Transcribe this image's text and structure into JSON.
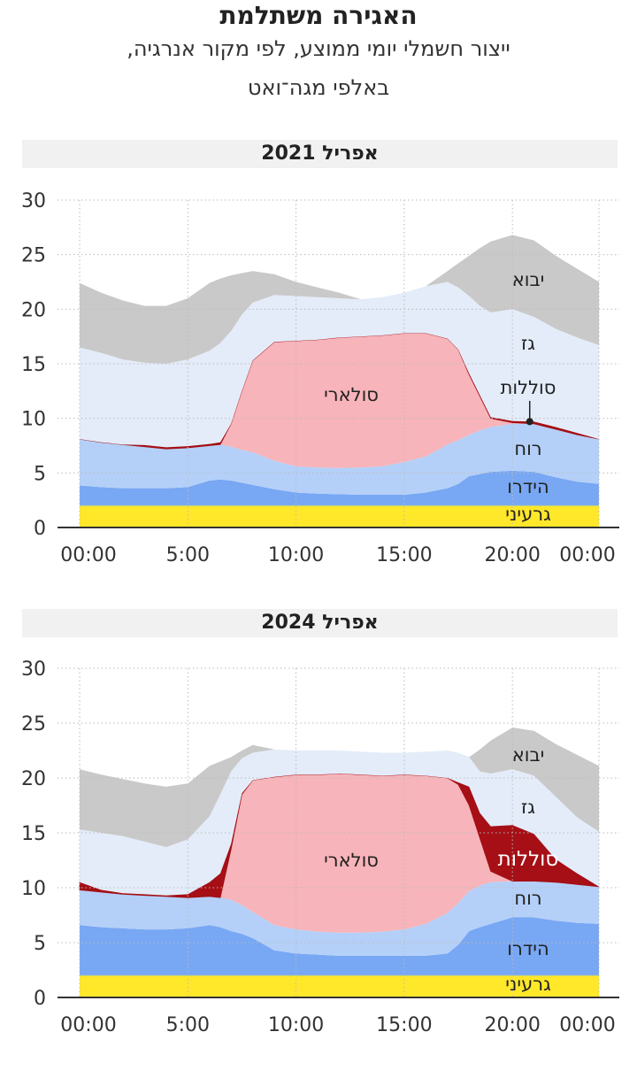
{
  "header": {
    "title": "האגירה משתלמת",
    "subtitle_line1": "ייצור חשמלי יומי ממוצע, לפי מקור אנרגיה,",
    "subtitle_line2": "באלפי מגה־ואט"
  },
  "colors": {
    "import": "#c9c9c9",
    "gas": "#e4ecf9",
    "batteries": "#a50f15",
    "solar": "#f7b4ba",
    "wind": "#b4d0f8",
    "hydro": "#78a7f3",
    "nuclear": "#ffe72a"
  },
  "chart_data": [
    {
      "type": "area",
      "stacked": true,
      "title": "אפריל 2021",
      "ylabel": "באלפי מגה־ואט",
      "ylim": [
        0,
        30
      ],
      "yticks": [
        "0",
        "5",
        "10",
        "15",
        "20",
        "25",
        "30"
      ],
      "xticks": [
        "00:00",
        "5:00",
        "10:00",
        "15:00",
        "20:00",
        "00:00"
      ],
      "grid": true,
      "x_hours": [
        0,
        1,
        2,
        3,
        4,
        5,
        6,
        6.5,
        7,
        7.5,
        8,
        9,
        10,
        11,
        12,
        13,
        14,
        15,
        16,
        17,
        17.5,
        18,
        18.5,
        19,
        20,
        21,
        22,
        23,
        24
      ],
      "value_mode": "cumulative stack top",
      "series": [
        {
          "key": "nuclear",
          "name": "גרעיני",
          "stack_top": [
            2,
            2,
            2,
            2,
            2,
            2,
            2,
            2,
            2,
            2,
            2,
            2,
            2,
            2,
            2,
            2,
            2,
            2,
            2,
            2,
            2,
            2,
            2,
            2,
            2,
            2,
            2,
            2,
            2
          ]
        },
        {
          "key": "hydro",
          "name": "הידרו",
          "stack_top": [
            3.85,
            3.7,
            3.6,
            3.6,
            3.6,
            3.7,
            4.3,
            4.4,
            4.3,
            4.1,
            3.9,
            3.5,
            3.2,
            3.1,
            3.05,
            3.0,
            3.0,
            3.0,
            3.2,
            3.6,
            4.0,
            4.7,
            4.9,
            5.1,
            5.2,
            5.1,
            4.6,
            4.2,
            4.0
          ]
        },
        {
          "key": "wind",
          "name": "רוח",
          "stack_top": [
            8.1,
            7.8,
            7.6,
            7.4,
            7.2,
            7.3,
            7.5,
            7.6,
            7.4,
            7.1,
            6.9,
            6.1,
            5.6,
            5.5,
            5.45,
            5.5,
            5.6,
            6.0,
            6.5,
            7.6,
            8.0,
            8.5,
            8.9,
            9.2,
            9.5,
            9.5,
            9.0,
            8.5,
            8.1
          ]
        },
        {
          "key": "solar",
          "name": "סולארי",
          "stack_top": [
            8.1,
            7.8,
            7.6,
            7.4,
            7.2,
            7.3,
            7.5,
            7.6,
            9.5,
            12.5,
            15.3,
            17.0,
            17.1,
            17.2,
            17.4,
            17.5,
            17.6,
            17.8,
            17.8,
            17.3,
            16.3,
            14.0,
            12.0,
            10.0,
            9.6,
            9.5,
            9.0,
            8.5,
            8.1
          ]
        },
        {
          "key": "batteries",
          "name": "סוללות",
          "stack_top": [
            8.1,
            7.8,
            7.6,
            7.55,
            7.35,
            7.45,
            7.65,
            7.8,
            9.5,
            12.5,
            15.3,
            17.0,
            17.1,
            17.2,
            17.4,
            17.5,
            17.6,
            17.8,
            17.8,
            17.3,
            16.3,
            14.1,
            12.1,
            10.1,
            9.75,
            9.7,
            9.2,
            8.65,
            8.1
          ]
        },
        {
          "key": "gas",
          "name": "גז",
          "stack_top": [
            16.5,
            16.0,
            15.4,
            15.1,
            15.0,
            15.4,
            16.2,
            16.9,
            18.0,
            19.5,
            20.6,
            21.3,
            21.2,
            21.1,
            21.0,
            20.9,
            21.1,
            21.5,
            22.1,
            22.5,
            22.0,
            21.2,
            20.3,
            19.7,
            20.0,
            19.3,
            18.2,
            17.4,
            16.7
          ]
        },
        {
          "key": "import",
          "name": "יבוא",
          "stack_top": [
            22.4,
            21.5,
            20.8,
            20.3,
            20.3,
            21.0,
            22.4,
            22.8,
            23.1,
            23.3,
            23.5,
            23.2,
            22.5,
            22.0,
            21.5,
            20.9,
            21.1,
            21.5,
            22.1,
            23.5,
            24.2,
            24.9,
            25.6,
            26.2,
            26.8,
            26.3,
            24.9,
            23.7,
            22.5
          ]
        }
      ]
    },
    {
      "type": "area",
      "stacked": true,
      "title": "אפריל 2024",
      "ylabel": "באלפי מגה־ואט",
      "ylim": [
        0,
        30
      ],
      "yticks": [
        "0",
        "5",
        "10",
        "15",
        "20",
        "25",
        "30"
      ],
      "xticks": [
        "00:00",
        "5:00",
        "10:00",
        "15:00",
        "20:00",
        "00:00"
      ],
      "grid": true,
      "x_hours": [
        0,
        1,
        2,
        3,
        4,
        5,
        6,
        6.5,
        7,
        7.5,
        8,
        9,
        10,
        11,
        12,
        13,
        14,
        15,
        16,
        17,
        17.5,
        18,
        18.5,
        19,
        20,
        21,
        22,
        23,
        24
      ],
      "value_mode": "cumulative stack top",
      "series": [
        {
          "key": "nuclear",
          "name": "גרעיני",
          "stack_top": [
            2,
            2,
            2,
            2,
            2,
            2,
            2,
            2,
            2,
            2,
            2,
            2,
            2,
            2,
            2,
            2,
            2,
            2,
            2,
            2,
            2,
            2,
            2,
            2,
            2,
            2,
            2,
            2,
            2
          ]
        },
        {
          "key": "hydro",
          "name": "הידרו",
          "stack_top": [
            6.6,
            6.4,
            6.3,
            6.2,
            6.2,
            6.3,
            6.6,
            6.4,
            6.05,
            5.8,
            5.4,
            4.3,
            4.0,
            3.9,
            3.8,
            3.8,
            3.8,
            3.8,
            3.8,
            4.0,
            4.8,
            6.05,
            6.4,
            6.7,
            7.3,
            7.3,
            7.0,
            6.8,
            6.7
          ]
        },
        {
          "key": "wind",
          "name": "רוח",
          "stack_top": [
            9.8,
            9.6,
            9.4,
            9.3,
            9.2,
            9.1,
            9.2,
            9.1,
            8.9,
            8.4,
            7.8,
            6.6,
            6.2,
            6.0,
            5.9,
            5.9,
            6.0,
            6.2,
            6.7,
            7.7,
            8.6,
            9.7,
            10.2,
            10.5,
            10.6,
            10.6,
            10.5,
            10.3,
            10.1
          ]
        },
        {
          "key": "solar",
          "name": "סולארי",
          "stack_top": [
            9.8,
            9.6,
            9.4,
            9.3,
            9.2,
            9.1,
            9.2,
            9.1,
            13.5,
            18.5,
            19.8,
            20.1,
            20.3,
            20.3,
            20.4,
            20.3,
            20.2,
            20.3,
            20.2,
            20.0,
            19.4,
            17.5,
            14.5,
            11.5,
            10.6,
            10.6,
            10.5,
            10.3,
            10.1
          ]
        },
        {
          "key": "batteries",
          "name": "סוללות",
          "stack_top": [
            10.5,
            9.8,
            9.5,
            9.4,
            9.3,
            9.4,
            10.5,
            11.3,
            14.0,
            18.6,
            19.8,
            20.1,
            20.3,
            20.3,
            20.4,
            20.3,
            20.2,
            20.3,
            20.2,
            20.0,
            19.6,
            19.2,
            16.8,
            15.6,
            15.7,
            14.9,
            12.6,
            11.3,
            10.1
          ]
        },
        {
          "key": "gas",
          "name": "גז",
          "stack_top": [
            15.3,
            15.0,
            14.7,
            14.2,
            13.7,
            14.4,
            16.5,
            18.5,
            20.6,
            21.8,
            22.3,
            22.6,
            22.5,
            22.5,
            22.5,
            22.4,
            22.3,
            22.3,
            22.4,
            22.5,
            22.3,
            21.9,
            20.6,
            20.4,
            20.8,
            20.2,
            18.3,
            16.4,
            15.1
          ]
        },
        {
          "key": "import",
          "name": "יבוא",
          "stack_top": [
            20.8,
            20.3,
            19.9,
            19.5,
            19.2,
            19.5,
            21.1,
            21.5,
            21.9,
            22.5,
            23.0,
            22.6,
            22.5,
            22.5,
            22.5,
            22.4,
            22.3,
            22.3,
            22.4,
            22.5,
            22.3,
            21.9,
            22.6,
            23.4,
            24.6,
            24.3,
            23.1,
            22.1,
            21.1
          ]
        }
      ]
    }
  ]
}
